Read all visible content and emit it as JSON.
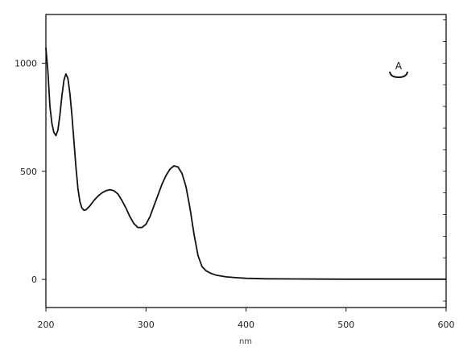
{
  "chart_data": {
    "type": "line",
    "title": "",
    "xlabel": "nm",
    "ylabel": "",
    "xlim": [
      200,
      600
    ],
    "ylim": [
      -130,
      1225
    ],
    "x_ticks": [
      200,
      300,
      400,
      500,
      600
    ],
    "y_ticks": [
      0,
      500,
      1000
    ],
    "x_tick_labels": [
      "200",
      "300",
      "400",
      "500",
      "600"
    ],
    "y_tick_labels": [
      "0",
      "500",
      "1000"
    ],
    "grid": false,
    "annotation": "A",
    "series": [
      {
        "color": "#111111",
        "x": [
          200,
          202,
          204,
          206,
          208,
          210,
          212,
          214,
          216,
          218,
          220,
          222,
          224,
          226,
          228,
          230,
          232,
          234,
          236,
          238,
          240,
          244,
          248,
          252,
          256,
          260,
          264,
          268,
          272,
          276,
          280,
          284,
          288,
          292,
          296,
          300,
          304,
          308,
          312,
          316,
          320,
          324,
          328,
          332,
          336,
          340,
          344,
          348,
          352,
          356,
          360,
          365,
          370,
          380,
          390,
          400,
          420,
          450,
          500,
          550,
          600
        ],
        "y": [
          1070,
          960,
          800,
          720,
          680,
          665,
          690,
          760,
          850,
          920,
          950,
          930,
          860,
          760,
          640,
          520,
          420,
          360,
          330,
          320,
          322,
          340,
          365,
          385,
          400,
          410,
          415,
          410,
          395,
          365,
          330,
          290,
          258,
          240,
          240,
          255,
          290,
          340,
          390,
          440,
          480,
          510,
          525,
          520,
          490,
          430,
          330,
          210,
          110,
          60,
          40,
          28,
          20,
          12,
          8,
          5,
          3,
          2,
          1,
          1,
          1
        ]
      }
    ]
  }
}
